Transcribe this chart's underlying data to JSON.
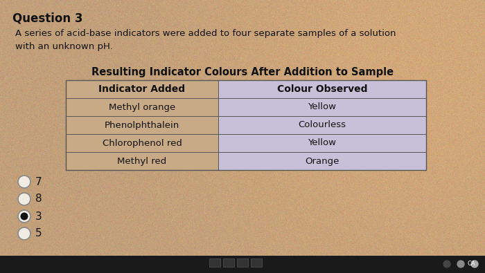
{
  "title": "Question 3",
  "subtitle": "A series of acid-base indicators were added to four separate samples of a solution\nwith an unknown pH.",
  "table_title": "Resulting Indicator Colours After Addition to Sample",
  "col_headers": [
    "Indicator Added",
    "Colour Observed"
  ],
  "rows": [
    [
      "Methyl orange",
      "Yellow"
    ],
    [
      "Phenolphthalein",
      "Colourless"
    ],
    [
      "Chlorophenol red",
      "Yellow"
    ],
    [
      "Methyl red",
      "Orange"
    ]
  ],
  "answer_options": [
    "7",
    "8",
    "3",
    "5"
  ],
  "selected_answer": "3",
  "bg_color": "#c2a07a",
  "table_fill_left": "#c8aa86",
  "table_fill_right": "#c8c0d8",
  "table_border": "#555555",
  "text_color": "#111111",
  "option_circle_color": "#888888",
  "option_fill": "#f0ece4",
  "selected_fill": "#111111",
  "taskbar_color": "#222222"
}
